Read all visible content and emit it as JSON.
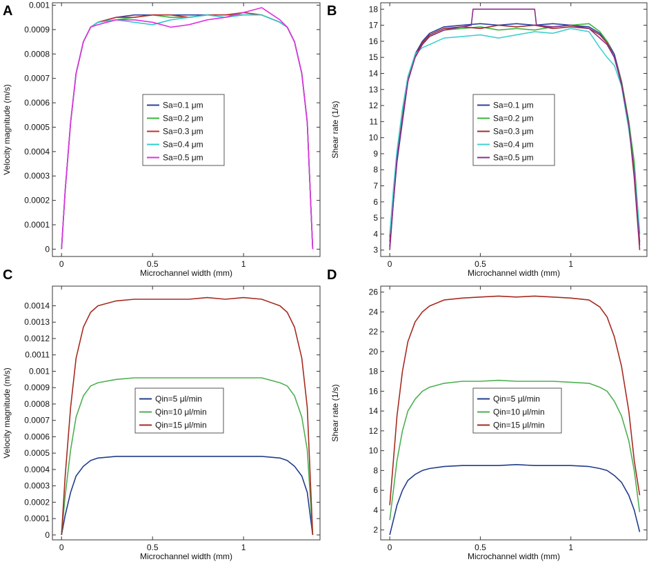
{
  "chart_data": [
    {
      "panel": "A",
      "type": "line",
      "title": "",
      "xlabel": "Microchannel width (mm)",
      "ylabel": "Velocity magnitude (m/s)",
      "xlim": [
        -0.05,
        1.42
      ],
      "ylim": [
        -3e-05,
        0.00101
      ],
      "x_ticks": [
        0,
        0.5,
        1
      ],
      "x_tick_labels": [
        "0",
        "0.5",
        "1"
      ],
      "y_ticks": [
        0,
        0.0001,
        0.0002,
        0.0003,
        0.0004,
        0.0005,
        0.0006,
        0.0007,
        0.0008,
        0.0009,
        0.001
      ],
      "y_tick_labels": [
        "0",
        "0.0001",
        "0.0002",
        "0.0003",
        "0.0004",
        "0.0005",
        "0.0006",
        "0.0007",
        "0.0008",
        "0.0009",
        "0.001"
      ],
      "legend_position": "center",
      "series": [
        {
          "name": "Sa=0.1 μm",
          "color": "#2b3fa0",
          "x": [
            0,
            0.02,
            0.05,
            0.08,
            0.12,
            0.16,
            0.2,
            0.3,
            0.4,
            0.5,
            0.6,
            0.7,
            0.8,
            0.9,
            1.0,
            1.1,
            1.2,
            1.24,
            1.28,
            1.32,
            1.35,
            1.38
          ],
          "y": [
            0,
            0.00024,
            0.00052,
            0.00072,
            0.00085,
            0.00091,
            0.00093,
            0.00095,
            0.00096,
            0.00096,
            0.00096,
            0.00096,
            0.00096,
            0.00096,
            0.00096,
            0.00096,
            0.00093,
            0.00091,
            0.00085,
            0.00072,
            0.00052,
            0.0
          ]
        },
        {
          "name": "Sa=0.2 μm",
          "color": "#3cb43c",
          "x": [
            0,
            0.02,
            0.05,
            0.08,
            0.12,
            0.16,
            0.2,
            0.3,
            0.4,
            0.5,
            0.6,
            0.7,
            0.8,
            0.9,
            1.0,
            1.1,
            1.2,
            1.24,
            1.28,
            1.32,
            1.35,
            1.38
          ],
          "y": [
            0,
            0.00024,
            0.00052,
            0.00072,
            0.00085,
            0.00091,
            0.00093,
            0.00094,
            0.00095,
            0.00096,
            0.00095,
            0.00095,
            0.00096,
            0.00096,
            0.00096,
            0.00096,
            0.00093,
            0.00091,
            0.00085,
            0.00072,
            0.00052,
            0.0
          ]
        },
        {
          "name": "Sa=0.3 μm",
          "color": "#c03030",
          "x": [
            0,
            0.02,
            0.05,
            0.08,
            0.12,
            0.16,
            0.2,
            0.3,
            0.4,
            0.5,
            0.6,
            0.7,
            0.8,
            0.9,
            1.0,
            1.1,
            1.2,
            1.24,
            1.28,
            1.32,
            1.35,
            1.38
          ],
          "y": [
            0,
            0.00024,
            0.00052,
            0.00072,
            0.00085,
            0.00091,
            0.00093,
            0.00095,
            0.00095,
            0.00096,
            0.00096,
            0.00095,
            0.00096,
            0.00096,
            0.00097,
            0.00096,
            0.00093,
            0.00091,
            0.00085,
            0.00072,
            0.00052,
            0.0
          ]
        },
        {
          "name": "Sa=0.4 μm",
          "color": "#30cccc",
          "x": [
            0,
            0.02,
            0.05,
            0.08,
            0.12,
            0.16,
            0.2,
            0.3,
            0.4,
            0.5,
            0.6,
            0.7,
            0.8,
            0.9,
            1.0,
            1.1,
            1.2,
            1.24,
            1.28,
            1.32,
            1.35,
            1.38
          ],
          "y": [
            0,
            0.00024,
            0.00052,
            0.00072,
            0.00085,
            0.00091,
            0.00093,
            0.00094,
            0.00093,
            0.00092,
            0.00094,
            0.00095,
            0.00096,
            0.00095,
            0.00096,
            0.00096,
            0.00093,
            0.00091,
            0.00085,
            0.00072,
            0.00052,
            0.0
          ]
        },
        {
          "name": "Sa=0.5 μm",
          "color": "#e030e0",
          "x": [
            0,
            0.02,
            0.05,
            0.08,
            0.12,
            0.16,
            0.2,
            0.3,
            0.4,
            0.5,
            0.6,
            0.7,
            0.8,
            0.9,
            1.0,
            1.1,
            1.2,
            1.24,
            1.28,
            1.32,
            1.35,
            1.38
          ],
          "y": [
            0,
            0.00024,
            0.00052,
            0.00072,
            0.00085,
            0.00091,
            0.00092,
            0.00094,
            0.00094,
            0.00093,
            0.00091,
            0.00092,
            0.00094,
            0.00095,
            0.00097,
            0.00099,
            0.00094,
            0.00091,
            0.00085,
            0.00072,
            0.00052,
            0.0
          ]
        }
      ]
    },
    {
      "panel": "B",
      "type": "line",
      "title": "",
      "xlabel": "Microchannel width (mm)",
      "ylabel": "Shear rate (1/s)",
      "xlim": [
        -0.05,
        1.42
      ],
      "ylim": [
        2.6,
        18.4
      ],
      "x_ticks": [
        0,
        0.5,
        1
      ],
      "x_tick_labels": [
        "0",
        "0.5",
        "1"
      ],
      "y_ticks": [
        3,
        4,
        5,
        6,
        7,
        8,
        9,
        10,
        11,
        12,
        13,
        14,
        15,
        16,
        17,
        18
      ],
      "y_tick_labels": [
        "3",
        "4",
        "5",
        "6",
        "7",
        "8",
        "9",
        "10",
        "11",
        "12",
        "13",
        "14",
        "15",
        "16",
        "17",
        "18"
      ],
      "legend_position": "center",
      "series": [
        {
          "name": "Sa=0.1 μm",
          "color": "#2b3fa0",
          "x": [
            0,
            0.02,
            0.04,
            0.07,
            0.1,
            0.14,
            0.18,
            0.22,
            0.3,
            0.4,
            0.5,
            0.6,
            0.7,
            0.8,
            0.9,
            1.0,
            1.1,
            1.16,
            1.2,
            1.24,
            1.28,
            1.32,
            1.35,
            1.38
          ],
          "y": [
            3.2,
            6.0,
            8.5,
            11.0,
            13.5,
            15.2,
            16.0,
            16.5,
            16.9,
            17.0,
            17.1,
            17.0,
            17.1,
            17.0,
            17.1,
            17.0,
            16.9,
            16.5,
            16.0,
            15.2,
            13.5,
            11.0,
            8.0,
            3.5
          ]
        },
        {
          "name": "Sa=0.2 μm",
          "color": "#3cb43c",
          "x": [
            0,
            0.02,
            0.04,
            0.07,
            0.1,
            0.14,
            0.18,
            0.22,
            0.3,
            0.4,
            0.5,
            0.6,
            0.7,
            0.8,
            0.9,
            1.0,
            1.1,
            1.16,
            1.2,
            1.24,
            1.28,
            1.32,
            1.35,
            1.38
          ],
          "y": [
            3.8,
            6.5,
            9.0,
            11.5,
            13.8,
            15.0,
            15.8,
            16.3,
            16.7,
            16.8,
            16.9,
            16.7,
            16.8,
            16.7,
            16.9,
            17.0,
            17.1,
            16.6,
            16.0,
            15.0,
            13.5,
            11.0,
            8.5,
            4.0
          ]
        },
        {
          "name": "Sa=0.3 μm",
          "color": "#a02c2c",
          "x": [
            0,
            0.02,
            0.04,
            0.07,
            0.1,
            0.14,
            0.18,
            0.22,
            0.3,
            0.4,
            0.5,
            0.6,
            0.7,
            0.8,
            0.9,
            1.0,
            1.1,
            1.16,
            1.2,
            1.24,
            1.28,
            1.32,
            1.35,
            1.38
          ],
          "y": [
            3.5,
            6.2,
            8.8,
            11.2,
            13.6,
            15.1,
            15.9,
            16.4,
            16.8,
            16.9,
            16.8,
            17.0,
            16.9,
            17.0,
            16.8,
            16.9,
            16.8,
            16.4,
            15.9,
            15.0,
            13.4,
            10.8,
            7.5,
            3.0
          ]
        },
        {
          "name": "Sa=0.4 μm",
          "color": "#40d0d0",
          "x": [
            0,
            0.02,
            0.04,
            0.07,
            0.1,
            0.14,
            0.18,
            0.22,
            0.3,
            0.4,
            0.5,
            0.6,
            0.7,
            0.8,
            0.9,
            1.0,
            1.1,
            1.16,
            1.2,
            1.24,
            1.28,
            1.32,
            1.35,
            1.38
          ],
          "y": [
            4.0,
            6.8,
            9.2,
            11.8,
            13.8,
            15.2,
            15.6,
            15.8,
            16.2,
            16.3,
            16.4,
            16.2,
            16.4,
            16.6,
            16.5,
            16.8,
            16.6,
            15.6,
            15.0,
            14.5,
            13.2,
            10.5,
            8.0,
            4.2
          ]
        },
        {
          "name": "Sa=0.5 μm",
          "color": "#8c2c8c",
          "x": [
            0,
            0.02,
            0.04,
            0.07,
            0.1,
            0.14,
            0.18,
            0.22,
            0.3,
            0.4,
            0.45,
            0.46,
            0.8,
            0.81,
            0.9,
            1.0,
            1.1,
            1.16,
            1.2,
            1.24,
            1.28,
            1.32,
            1.35,
            1.38
          ],
          "y": [
            3.0,
            6.0,
            8.7,
            11.1,
            13.5,
            15.0,
            15.8,
            16.3,
            16.7,
            16.9,
            17.0,
            18.0,
            18.0,
            17.0,
            16.9,
            17.0,
            16.8,
            16.2,
            15.8,
            15.0,
            13.3,
            10.8,
            7.8,
            3.3
          ]
        }
      ]
    },
    {
      "panel": "C",
      "type": "line",
      "title": "",
      "xlabel": "Microchannel width (mm)",
      "ylabel": "Velocity magnitude (m/s)",
      "xlim": [
        -0.05,
        1.42
      ],
      "ylim": [
        -3e-05,
        0.00152
      ],
      "x_ticks": [
        0,
        0.5,
        1
      ],
      "x_tick_labels": [
        "0",
        "0.5",
        "1"
      ],
      "y_ticks": [
        0,
        0.0001,
        0.0002,
        0.0003,
        0.0004,
        0.0005,
        0.0006,
        0.0007,
        0.0008,
        0.0009,
        0.001,
        0.0011,
        0.0012,
        0.0013,
        0.0014
      ],
      "y_tick_labels": [
        "0",
        "0.0001",
        "0.0002",
        "0.0003",
        "0.0004",
        "0.0005",
        "0.0006",
        "0.0007",
        "0.0008",
        "0.0009",
        "0.001",
        "0.0011",
        "0.0012",
        "0.0013",
        "0.0014"
      ],
      "legend_position": "center",
      "series": [
        {
          "name": "Qin=5 μl/min",
          "color": "#1f3c8c",
          "x": [
            0,
            0.02,
            0.05,
            0.08,
            0.12,
            0.16,
            0.2,
            0.3,
            0.4,
            0.5,
            0.6,
            0.7,
            0.8,
            0.9,
            1.0,
            1.1,
            1.2,
            1.24,
            1.28,
            1.32,
            1.35,
            1.38
          ],
          "y": [
            0,
            0.00012,
            0.00026,
            0.00036,
            0.00042,
            0.000455,
            0.00047,
            0.00048,
            0.00048,
            0.00048,
            0.00048,
            0.00048,
            0.00048,
            0.00048,
            0.00048,
            0.00048,
            0.00047,
            0.000455,
            0.00042,
            0.00036,
            0.00026,
            0.0
          ]
        },
        {
          "name": "Qin=10 μl/min",
          "color": "#4caf50",
          "x": [
            0,
            0.02,
            0.05,
            0.08,
            0.12,
            0.16,
            0.2,
            0.3,
            0.4,
            0.5,
            0.6,
            0.7,
            0.8,
            0.9,
            1.0,
            1.1,
            1.2,
            1.24,
            1.28,
            1.32,
            1.35,
            1.38
          ],
          "y": [
            0,
            0.00024,
            0.00052,
            0.00072,
            0.00085,
            0.00091,
            0.00093,
            0.00095,
            0.00096,
            0.00096,
            0.00096,
            0.00096,
            0.00096,
            0.00096,
            0.00096,
            0.00096,
            0.00093,
            0.00091,
            0.00085,
            0.00072,
            0.00052,
            0.0
          ]
        },
        {
          "name": "Qin=15 μl/min",
          "color": "#a52a1f",
          "x": [
            0,
            0.02,
            0.05,
            0.08,
            0.12,
            0.16,
            0.2,
            0.3,
            0.4,
            0.5,
            0.6,
            0.7,
            0.8,
            0.9,
            1.0,
            1.1,
            1.2,
            1.24,
            1.28,
            1.32,
            1.35,
            1.38
          ],
          "y": [
            0,
            0.00036,
            0.00078,
            0.00108,
            0.00127,
            0.00136,
            0.0014,
            0.00143,
            0.00144,
            0.00144,
            0.00144,
            0.00144,
            0.00145,
            0.00144,
            0.00145,
            0.00144,
            0.0014,
            0.00136,
            0.00127,
            0.00108,
            0.00078,
            0.0
          ]
        }
      ]
    },
    {
      "panel": "D",
      "type": "line",
      "title": "",
      "xlabel": "Microchannel width (mm)",
      "ylabel": "Shear rate (1/s)",
      "xlim": [
        -0.05,
        1.42
      ],
      "ylim": [
        1.0,
        26.6
      ],
      "x_ticks": [
        0,
        0.5,
        1
      ],
      "x_tick_labels": [
        "0",
        "0.5",
        "1"
      ],
      "y_ticks": [
        2,
        4,
        6,
        8,
        10,
        12,
        14,
        16,
        18,
        20,
        22,
        24,
        26
      ],
      "y_tick_labels": [
        "2",
        "4",
        "6",
        "8",
        "10",
        "12",
        "14",
        "16",
        "18",
        "20",
        "22",
        "24",
        "26"
      ],
      "legend_position": "center",
      "series": [
        {
          "name": "Qin=5 μl/min",
          "color": "#1f3c8c",
          "x": [
            0,
            0.02,
            0.04,
            0.07,
            0.1,
            0.14,
            0.18,
            0.22,
            0.3,
            0.4,
            0.5,
            0.6,
            0.7,
            0.8,
            0.9,
            1.0,
            1.1,
            1.16,
            1.2,
            1.24,
            1.28,
            1.32,
            1.35,
            1.38
          ],
          "y": [
            1.5,
            3.0,
            4.5,
            6.0,
            7.0,
            7.6,
            8.0,
            8.2,
            8.4,
            8.5,
            8.5,
            8.5,
            8.6,
            8.5,
            8.5,
            8.5,
            8.4,
            8.2,
            8.0,
            7.5,
            6.8,
            5.5,
            4.0,
            1.8
          ]
        },
        {
          "name": "Qin=10 μl/min",
          "color": "#4caf50",
          "x": [
            0,
            0.02,
            0.04,
            0.07,
            0.1,
            0.14,
            0.18,
            0.22,
            0.3,
            0.4,
            0.5,
            0.6,
            0.7,
            0.8,
            0.9,
            1.0,
            1.1,
            1.16,
            1.2,
            1.24,
            1.28,
            1.32,
            1.35,
            1.38
          ],
          "y": [
            3.0,
            6.0,
            9.0,
            12.0,
            14.0,
            15.2,
            16.0,
            16.4,
            16.8,
            17.0,
            17.0,
            17.1,
            17.0,
            17.0,
            17.0,
            16.9,
            16.8,
            16.4,
            16.0,
            15.0,
            13.5,
            11.0,
            8.0,
            3.8
          ]
        },
        {
          "name": "Qin=15 μl/min",
          "color": "#a52a1f",
          "x": [
            0,
            0.02,
            0.04,
            0.07,
            0.1,
            0.14,
            0.18,
            0.22,
            0.3,
            0.4,
            0.5,
            0.6,
            0.7,
            0.8,
            0.9,
            1.0,
            1.1,
            1.16,
            1.2,
            1.24,
            1.28,
            1.32,
            1.35,
            1.38
          ],
          "y": [
            4.5,
            9.0,
            13.5,
            18.0,
            21.0,
            23.0,
            24.0,
            24.6,
            25.2,
            25.4,
            25.5,
            25.6,
            25.5,
            25.6,
            25.5,
            25.4,
            25.2,
            24.5,
            23.5,
            21.5,
            18.5,
            14.0,
            9.0,
            5.5
          ]
        }
      ]
    }
  ]
}
